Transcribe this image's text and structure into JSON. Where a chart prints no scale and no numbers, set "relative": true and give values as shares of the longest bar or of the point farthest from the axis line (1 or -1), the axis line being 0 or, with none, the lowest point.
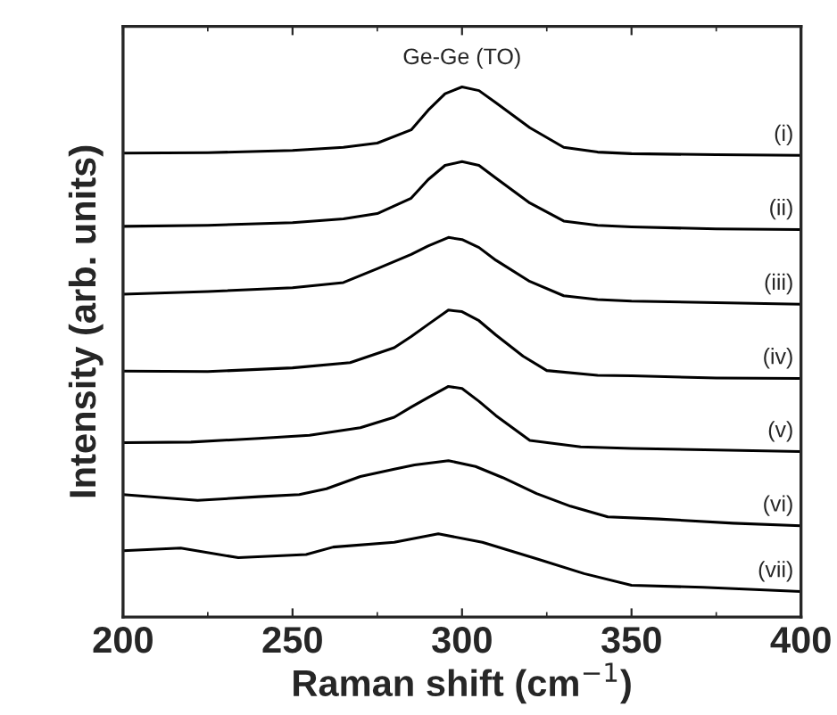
{
  "chart_data": {
    "type": "line",
    "relative": true,
    "xlabel": "Raman shift (cm$^{−1}$)",
    "ylabel": "Intensity (arb. units)",
    "xlim": [
      200,
      400
    ],
    "xticks": [
      200,
      250,
      300,
      350,
      400
    ],
    "grid": false,
    "legend": false,
    "tick_labels": "x",
    "marker": "none",
    "line_style": "solid",
    "annotations": [
      "Ge-Ge (TO)"
    ],
    "series": [
      {
        "name": "(i)",
        "color": "#000000",
        "x": [
          200,
          225,
          250,
          265,
          275,
          285,
          290,
          295,
          300,
          305,
          310,
          320,
          330,
          340,
          350,
          375,
          400
        ],
        "values": [
          0.875,
          0.876,
          0.88,
          0.886,
          0.894,
          0.919,
          0.956,
          0.987,
          1.0,
          0.993,
          0.97,
          0.923,
          0.886,
          0.877,
          0.874,
          0.872,
          0.871
        ]
      },
      {
        "name": "(ii)",
        "color": "#000000",
        "x": [
          200,
          225,
          250,
          265,
          275,
          285,
          290,
          295,
          300,
          305,
          310,
          320,
          330,
          340,
          350,
          375,
          400
        ],
        "values": [
          0.737,
          0.739,
          0.744,
          0.751,
          0.761,
          0.79,
          0.825,
          0.852,
          0.859,
          0.852,
          0.828,
          0.781,
          0.747,
          0.739,
          0.736,
          0.732,
          0.731
        ]
      },
      {
        "name": "(iii)",
        "color": "#000000",
        "x": [
          200,
          225,
          250,
          265,
          275,
          285,
          290,
          296,
          300,
          305,
          310,
          320,
          330,
          340,
          350,
          375,
          400
        ],
        "values": [
          0.609,
          0.614,
          0.621,
          0.631,
          0.657,
          0.684,
          0.7,
          0.716,
          0.712,
          0.697,
          0.673,
          0.633,
          0.606,
          0.599,
          0.596,
          0.593,
          0.59
        ]
      },
      {
        "name": "(iv)",
        "color": "#000000",
        "x": [
          200,
          225,
          250,
          267,
          280,
          285,
          290,
          296,
          300,
          305,
          310,
          318,
          325,
          340,
          350,
          375,
          400
        ],
        "values": [
          0.464,
          0.463,
          0.47,
          0.48,
          0.508,
          0.529,
          0.552,
          0.579,
          0.576,
          0.559,
          0.532,
          0.492,
          0.465,
          0.456,
          0.455,
          0.451,
          0.45
        ]
      },
      {
        "name": "(v)",
        "color": "#000000",
        "x": [
          200,
          220,
          240,
          255,
          270,
          280,
          285,
          290,
          296,
          300,
          305,
          310,
          320,
          335,
          350,
          375,
          400
        ],
        "values": [
          0.329,
          0.33,
          0.337,
          0.343,
          0.357,
          0.377,
          0.396,
          0.414,
          0.435,
          0.431,
          0.407,
          0.38,
          0.333,
          0.321,
          0.318,
          0.315,
          0.312
        ]
      },
      {
        "name": "(vi)",
        "color": "#000000",
        "x": [
          200,
          222,
          240,
          252,
          260,
          270,
          280,
          286,
          296,
          304,
          312,
          322,
          332,
          343,
          358,
          380,
          400
        ],
        "values": [
          0.231,
          0.22,
          0.227,
          0.231,
          0.242,
          0.265,
          0.279,
          0.287,
          0.295,
          0.284,
          0.263,
          0.233,
          0.209,
          0.189,
          0.185,
          0.177,
          0.172
        ]
      },
      {
        "name": "(vii)",
        "color": "#000000",
        "x": [
          200,
          217,
          234,
          254,
          262,
          280,
          293,
          306,
          322,
          336,
          350,
          371,
          400
        ],
        "values": [
          0.125,
          0.13,
          0.112,
          0.118,
          0.132,
          0.141,
          0.157,
          0.141,
          0.11,
          0.082,
          0.06,
          0.056,
          0.048
        ]
      }
    ]
  }
}
